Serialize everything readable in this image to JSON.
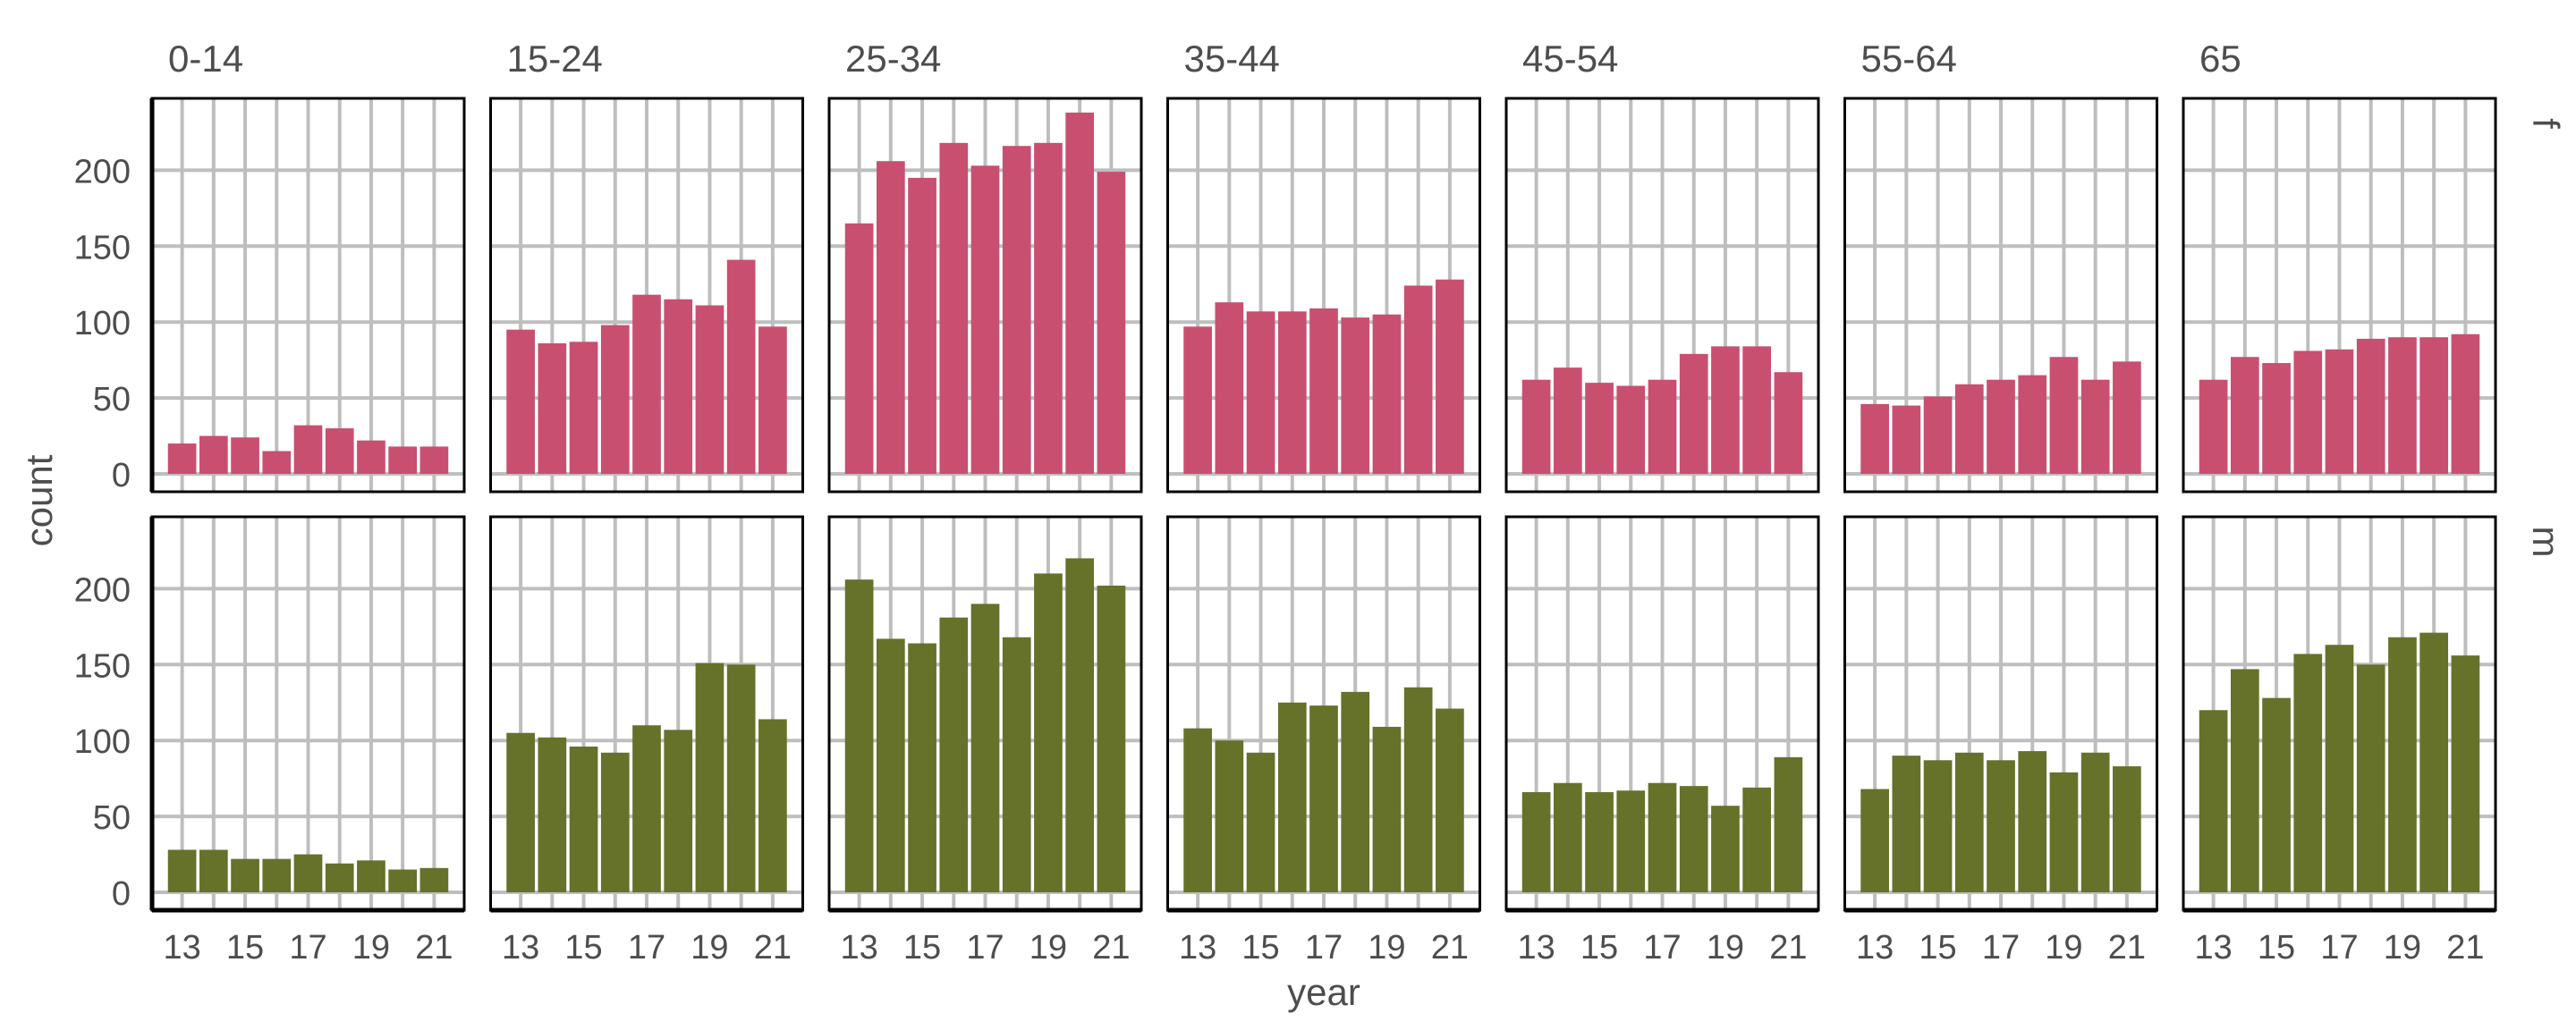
{
  "chart_data": {
    "type": "bar",
    "facet_columns": [
      "0-14",
      "15-24",
      "25-34",
      "35-44",
      "45-54",
      "55-64",
      "65"
    ],
    "facet_rows": [
      "f",
      "m"
    ],
    "x": [
      13,
      14,
      15,
      16,
      17,
      18,
      19,
      20,
      21
    ],
    "x_tick_labels": [
      "13",
      "15",
      "17",
      "19",
      "21"
    ],
    "xlabel": "year",
    "ylabel": "count",
    "ylim": [
      0,
      245
    ],
    "y_tick_labels": [
      "0",
      "50",
      "100",
      "150",
      "200"
    ],
    "grid": true,
    "series": [
      {
        "facet_row": "f",
        "color": "#c94f70",
        "panels": [
          [
            20,
            25,
            24,
            15,
            32,
            30,
            22,
            18,
            18
          ],
          [
            95,
            86,
            87,
            98,
            118,
            115,
            111,
            141,
            97
          ],
          [
            165,
            206,
            195,
            218,
            203,
            216,
            218,
            238,
            199
          ],
          [
            97,
            113,
            107,
            107,
            109,
            103,
            105,
            124,
            128
          ],
          [
            62,
            70,
            60,
            58,
            62,
            79,
            84,
            84,
            67
          ],
          [
            46,
            45,
            51,
            59,
            62,
            65,
            77,
            62,
            74
          ],
          [
            62,
            77,
            73,
            81,
            82,
            89,
            90,
            90,
            92
          ]
        ]
      },
      {
        "facet_row": "m",
        "color": "#66712a",
        "panels": [
          [
            28,
            28,
            22,
            22,
            25,
            19,
            21,
            15,
            16
          ],
          [
            105,
            102,
            96,
            92,
            110,
            107,
            151,
            150,
            114
          ],
          [
            206,
            167,
            164,
            181,
            190,
            168,
            210,
            220,
            202
          ],
          [
            108,
            100,
            92,
            125,
            123,
            132,
            109,
            135,
            121
          ],
          [
            66,
            72,
            66,
            67,
            72,
            70,
            57,
            69,
            89
          ],
          [
            68,
            90,
            87,
            92,
            87,
            93,
            79,
            92,
            83
          ],
          [
            120,
            147,
            128,
            157,
            163,
            150,
            168,
            171,
            156
          ]
        ]
      }
    ]
  }
}
